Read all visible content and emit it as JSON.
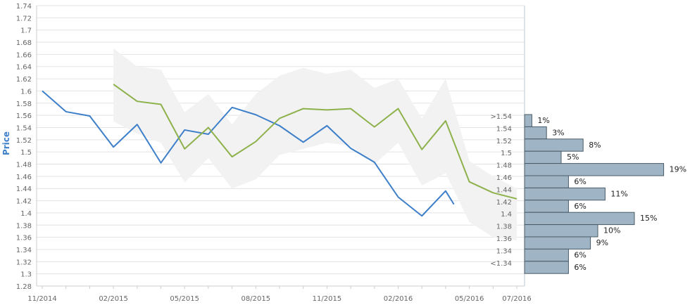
{
  "chart_data": {
    "type": "line",
    "ylabel": "Price",
    "ylim": [
      1.28,
      1.74
    ],
    "y_ticks": [
      "1.28",
      "1.3",
      "1.32",
      "1.34",
      "1.36",
      "1.38",
      "1.4",
      "1.42",
      "1.44",
      "1.46",
      "1.48",
      "1.5",
      "1.52",
      "1.54",
      "1.56",
      "1.58",
      "1.6",
      "1.62",
      "1.64",
      "1.66",
      "1.68",
      "1.7",
      "1.72",
      "1.74"
    ],
    "x_tick_labels": [
      "11/2014",
      "02/2015",
      "05/2015",
      "08/2015",
      "11/2015",
      "02/2016",
      "05/2016",
      "07/2016"
    ],
    "grid": true,
    "series": [
      {
        "color": "#3d7fc9",
        "x": [
          "11/2014",
          "12/2014",
          "01/2015",
          "02/2015",
          "03/2015",
          "04/2015",
          "05/2015",
          "06/2015",
          "07/2015",
          "08/2015",
          "09/2015",
          "10/2015",
          "11/2015",
          "12/2015",
          "01/2016",
          "02/2016",
          "03/2016",
          "04/2016",
          "04/2016 end"
        ],
        "values": [
          1.6,
          1.566,
          1.559,
          1.508,
          1.545,
          1.482,
          1.536,
          1.529,
          1.573,
          1.561,
          1.543,
          1.516,
          1.543,
          1.506,
          1.483,
          1.426,
          1.395,
          1.436,
          1.414
        ]
      },
      {
        "color": "#8db14b",
        "x": [
          "02/2015",
          "03/2015",
          "04/2015",
          "05/2015",
          "06/2015",
          "07/2015",
          "08/2015",
          "09/2015",
          "10/2015",
          "11/2015",
          "12/2015",
          "01/2016",
          "02/2016",
          "03/2016",
          "04/2016",
          "05/2016",
          "06/2016",
          "07/2016"
        ],
        "values": [
          1.611,
          1.583,
          1.578,
          1.505,
          1.54,
          1.492,
          1.517,
          1.555,
          1.571,
          1.569,
          1.571,
          1.541,
          1.571,
          1.504,
          1.551,
          1.451,
          1.433,
          1.423
        ]
      }
    ],
    "band": {
      "color": "#f2f2f2",
      "x": [
        "02/2015",
        "03/2015",
        "04/2015",
        "05/2015",
        "06/2015",
        "07/2015",
        "08/2015",
        "09/2015",
        "10/2015",
        "11/2015",
        "12/2015",
        "01/2016",
        "02/2016",
        "03/2016",
        "04/2016",
        "05/2016",
        "06/2016",
        "07/2016"
      ],
      "upper": [
        1.67,
        1.64,
        1.635,
        1.565,
        1.595,
        1.545,
        1.595,
        1.625,
        1.638,
        1.628,
        1.635,
        1.605,
        1.62,
        1.555,
        1.62,
        1.485,
        1.46,
        1.44
      ],
      "lower": [
        1.55,
        1.53,
        1.515,
        1.45,
        1.49,
        1.44,
        1.455,
        1.495,
        1.505,
        1.515,
        1.51,
        1.48,
        1.515,
        1.445,
        1.465,
        1.385,
        1.36,
        1.355
      ]
    },
    "histogram": {
      "color": "#9fb5c6",
      "categories": [
        ">1.54",
        "1.54",
        "1.52",
        "1.5",
        "1.48",
        "1.46",
        "1.44",
        "1.42",
        "1.4",
        "1.38",
        "1.36",
        "1.34",
        "<1.34"
      ],
      "values": [
        1,
        3,
        8,
        5,
        19,
        6,
        11,
        6,
        15,
        10,
        9,
        6,
        6
      ],
      "labels": [
        "1%",
        "3%",
        "8%",
        "5%",
        "19%",
        "6%",
        "11%",
        "6%",
        "15%",
        "10%",
        "9%",
        "6%",
        "6%"
      ]
    }
  }
}
